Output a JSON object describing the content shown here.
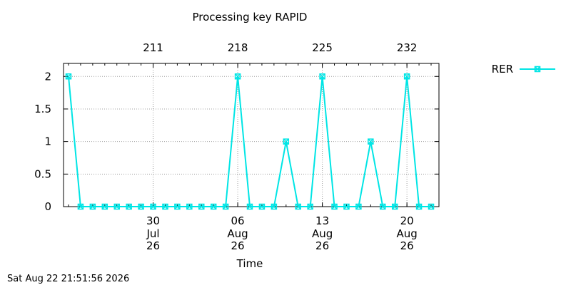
{
  "chart_data": {
    "type": "line",
    "title": "Processing key RAPID",
    "xlabel": "Time",
    "ylabel": "",
    "x": [
      "2026-07-23",
      "2026-07-24",
      "2026-07-25",
      "2026-07-26",
      "2026-07-27",
      "2026-07-28",
      "2026-07-29",
      "2026-07-30",
      "2026-07-31",
      "2026-08-01",
      "2026-08-02",
      "2026-08-03",
      "2026-08-04",
      "2026-08-05",
      "2026-08-06",
      "2026-08-07",
      "2026-08-08",
      "2026-08-09",
      "2026-08-10",
      "2026-08-11",
      "2026-08-12",
      "2026-08-13",
      "2026-08-14",
      "2026-08-15",
      "2026-08-16",
      "2026-08-17",
      "2026-08-18",
      "2026-08-19",
      "2026-08-20",
      "2026-08-21",
      "2026-08-22"
    ],
    "series": [
      {
        "name": "RER",
        "color": "#00e5e5",
        "marker": "x-square",
        "values": [
          2,
          0,
          0,
          0,
          0,
          0,
          0,
          0,
          0,
          0,
          0,
          0,
          0,
          0,
          2,
          0,
          0,
          0,
          1,
          0,
          0,
          2,
          0,
          0,
          0,
          1,
          0,
          0,
          2,
          0,
          0
        ]
      }
    ],
    "ylim": [
      0,
      2.2
    ],
    "yticks": [
      "0",
      "0.5",
      "1",
      "1.5",
      "2"
    ],
    "ytick_values": [
      0,
      0.5,
      1,
      1.5,
      2
    ],
    "xticks": [
      {
        "date": "2026-07-30",
        "day": "30",
        "month": "Jul",
        "year": "26"
      },
      {
        "date": "2026-08-06",
        "day": "06",
        "month": "Aug",
        "year": "26"
      },
      {
        "date": "2026-08-13",
        "day": "13",
        "month": "Aug",
        "year": "26"
      },
      {
        "date": "2026-08-20",
        "day": "20",
        "month": "Aug",
        "year": "26"
      }
    ],
    "x2ticks": [
      {
        "date": "2026-07-30",
        "label": "211"
      },
      {
        "date": "2026-08-06",
        "label": "218"
      },
      {
        "date": "2026-08-13",
        "label": "225"
      },
      {
        "date": "2026-08-20",
        "label": "232"
      }
    ],
    "grid": true,
    "legend_position": "top-right, outside plot"
  },
  "footer": {
    "timestamp": "Sat Aug 22 21:51:56 2026"
  }
}
